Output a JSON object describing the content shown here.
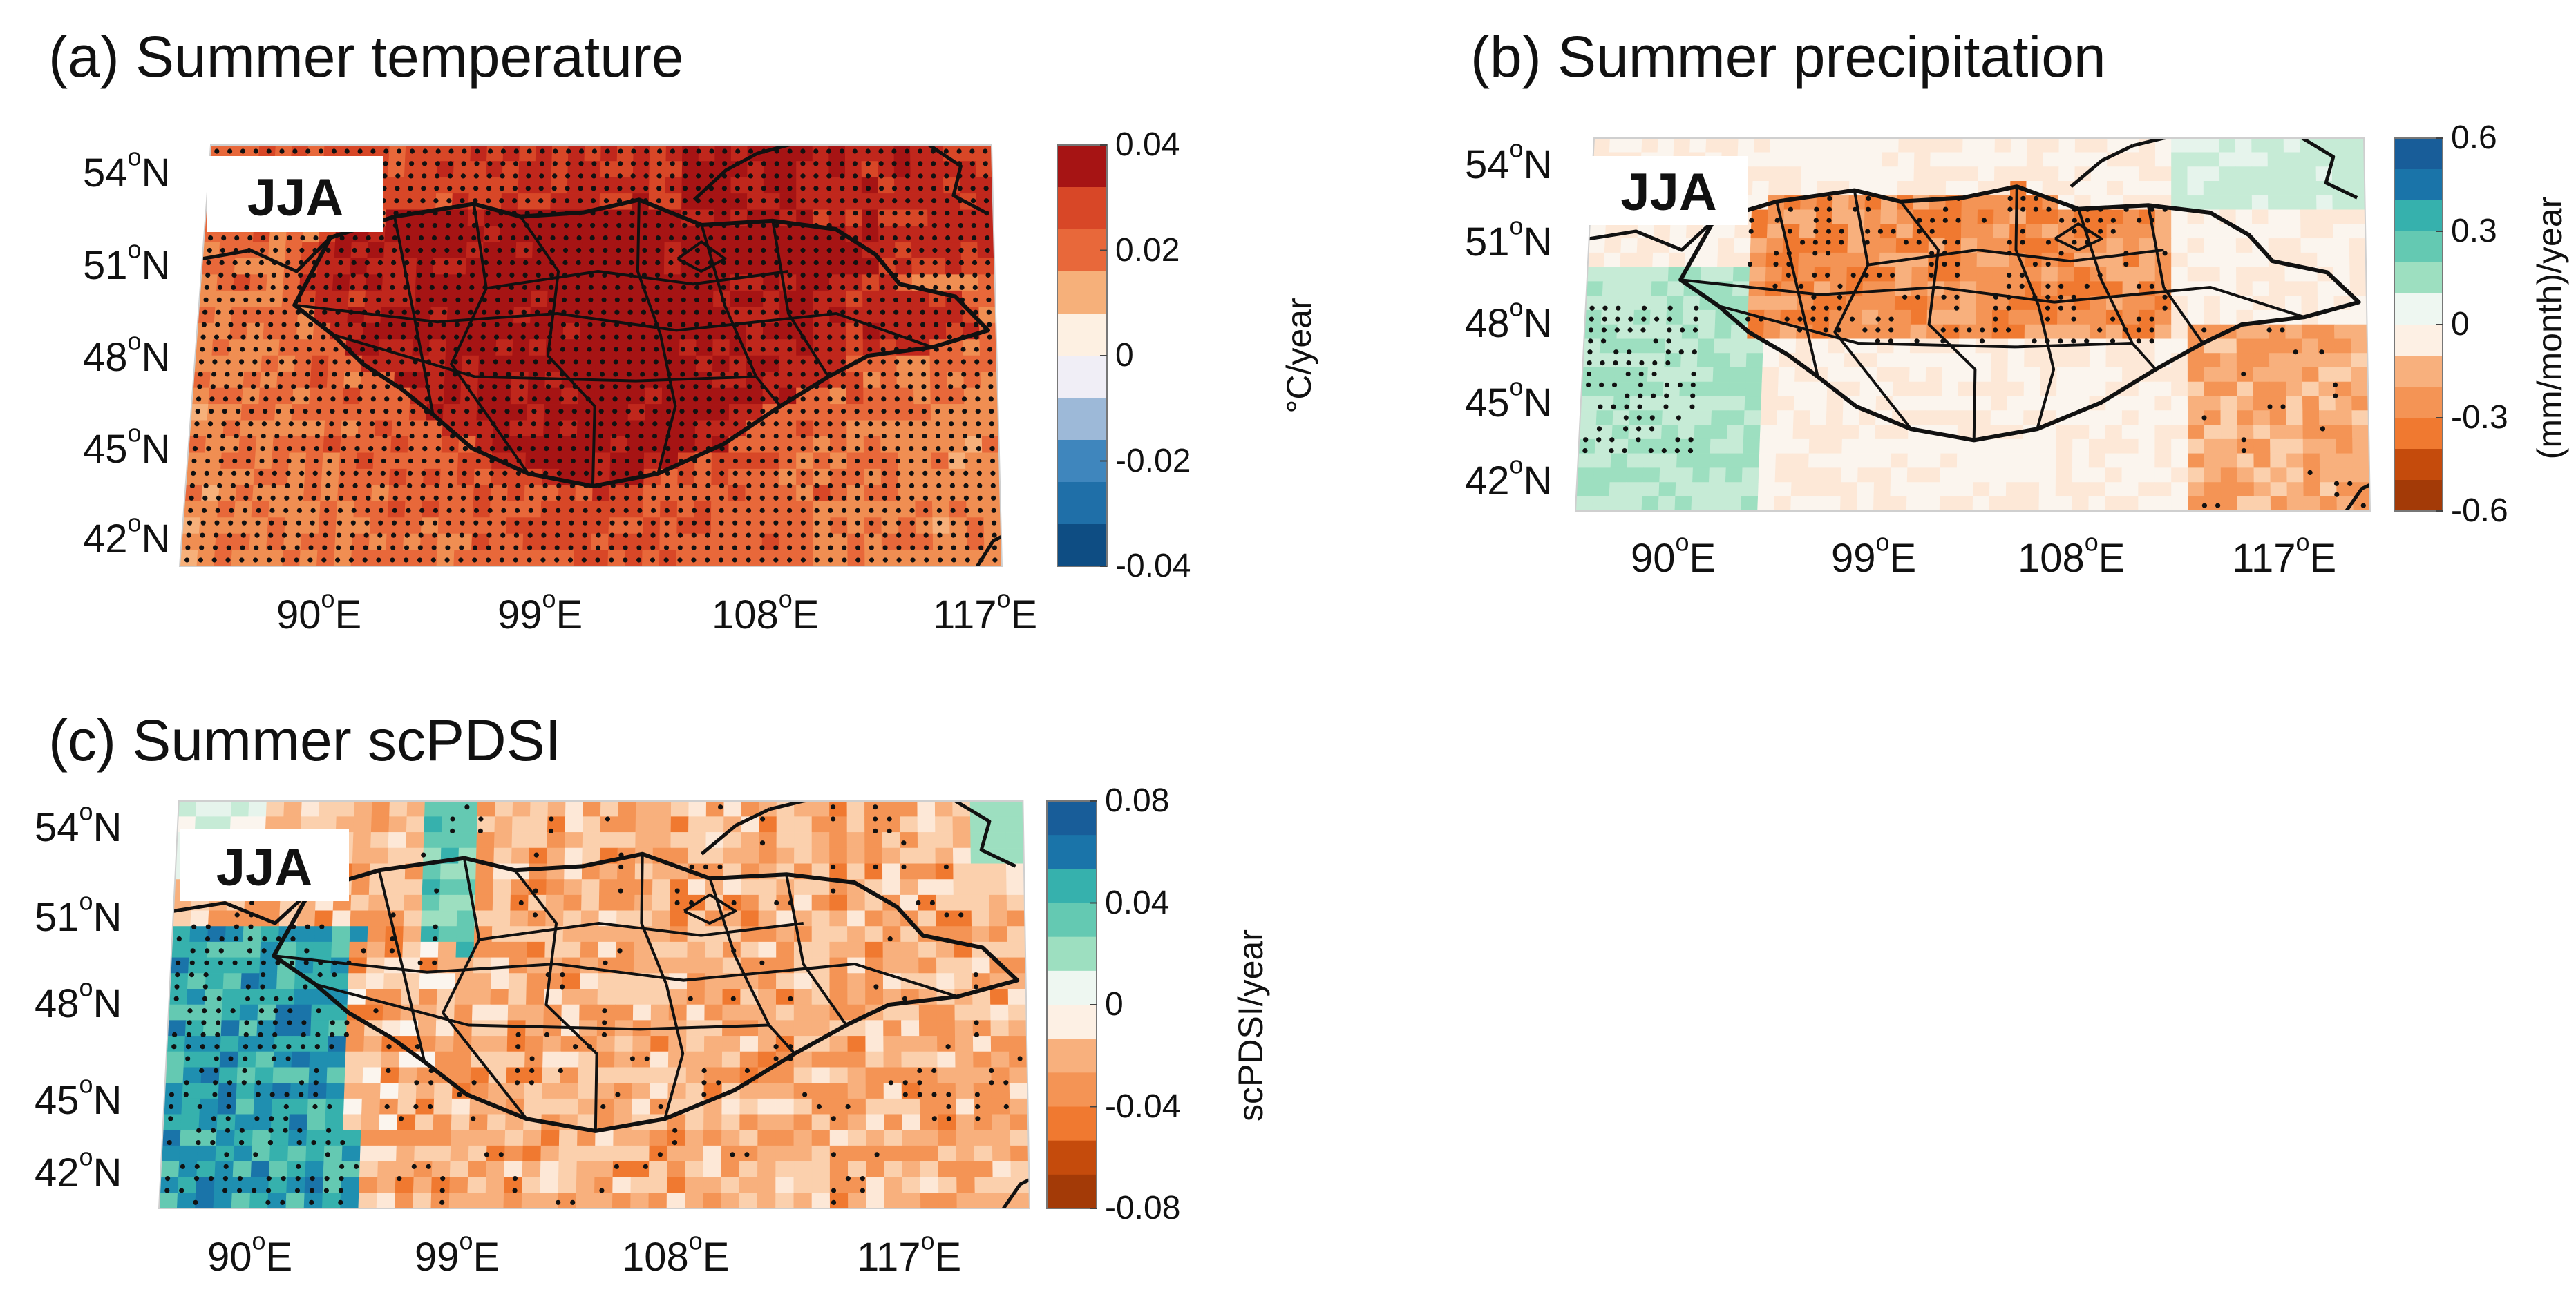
{
  "figure": {
    "colors": {
      "warm": [
        "#f7e6d9",
        "#fbd3b0",
        "#f6b07a",
        "#f08e52",
        "#e8683a",
        "#d84727",
        "#c0271c",
        "#a61414"
      ],
      "cool": [
        "#eaeef4",
        "#c7d4e6",
        "#9db9d8",
        "#6f9dc9",
        "#3f86bd",
        "#1f6fa8",
        "#115c95",
        "#0e4d83"
      ],
      "wet": [
        "#e6f4ec",
        "#c6ebd6",
        "#9ddfc0",
        "#64c9b2",
        "#36b1ad",
        "#1f8fb0",
        "#1a74a9",
        "#185d99"
      ],
      "dry": [
        "#fde8d7",
        "#fbd0ad",
        "#f8b07d",
        "#f49455",
        "#f07930",
        "#e15e15",
        "#c54b0c",
        "#a33a07"
      ],
      "border": "#111111",
      "stipple": "#111111"
    }
  },
  "panels": [
    {
      "id": "a",
      "title": "(a) Summer temperature",
      "season_label": "JJA",
      "lat_labels": [
        {
          "deg": "54",
          "hem": "N"
        },
        {
          "deg": "51",
          "hem": "N"
        },
        {
          "deg": "48",
          "hem": "N"
        },
        {
          "deg": "45",
          "hem": "N"
        },
        {
          "deg": "42",
          "hem": "N"
        }
      ],
      "lon_labels": [
        {
          "deg": "90",
          "hem": "E"
        },
        {
          "deg": "99",
          "hem": "E"
        },
        {
          "deg": "108",
          "hem": "E"
        },
        {
          "deg": "117",
          "hem": "E"
        }
      ],
      "colorbar": {
        "unit": "°C/year",
        "ticks": [
          "0.04",
          "0.02",
          "0",
          "-0.02",
          "-0.04"
        ],
        "range": [
          -0.04,
          0.04
        ],
        "levels": 10
      }
    },
    {
      "id": "b",
      "title": "(b) Summer precipitation",
      "season_label": "JJA",
      "lat_labels": [
        {
          "deg": "54",
          "hem": "N"
        },
        {
          "deg": "51",
          "hem": "N"
        },
        {
          "deg": "48",
          "hem": "N"
        },
        {
          "deg": "45",
          "hem": "N"
        },
        {
          "deg": "42",
          "hem": "N"
        }
      ],
      "lon_labels": [
        {
          "deg": "90",
          "hem": "E"
        },
        {
          "deg": "99",
          "hem": "E"
        },
        {
          "deg": "108",
          "hem": "E"
        },
        {
          "deg": "117",
          "hem": "E"
        }
      ],
      "colorbar": {
        "unit": "(mm/month)/year",
        "ticks": [
          "0.6",
          "0.3",
          "0",
          "-0.3",
          "-0.6"
        ],
        "range": [
          -0.6,
          0.6
        ],
        "levels": 12
      }
    },
    {
      "id": "c",
      "title": "(c) Summer scPDSI",
      "season_label": "JJA",
      "lat_labels": [
        {
          "deg": "54",
          "hem": "N"
        },
        {
          "deg": "51",
          "hem": "N"
        },
        {
          "deg": "48",
          "hem": "N"
        },
        {
          "deg": "45",
          "hem": "N"
        },
        {
          "deg": "42",
          "hem": "N"
        }
      ],
      "lon_labels": [
        {
          "deg": "90",
          "hem": "E"
        },
        {
          "deg": "99",
          "hem": "E"
        },
        {
          "deg": "108",
          "hem": "E"
        },
        {
          "deg": "117",
          "hem": "E"
        }
      ],
      "colorbar": {
        "unit": "scPDSI/year",
        "ticks": [
          "0.08",
          "0.04",
          "0",
          "-0.04",
          "-0.08"
        ],
        "range": [
          -0.08,
          0.08
        ],
        "levels": 12
      }
    }
  ]
}
